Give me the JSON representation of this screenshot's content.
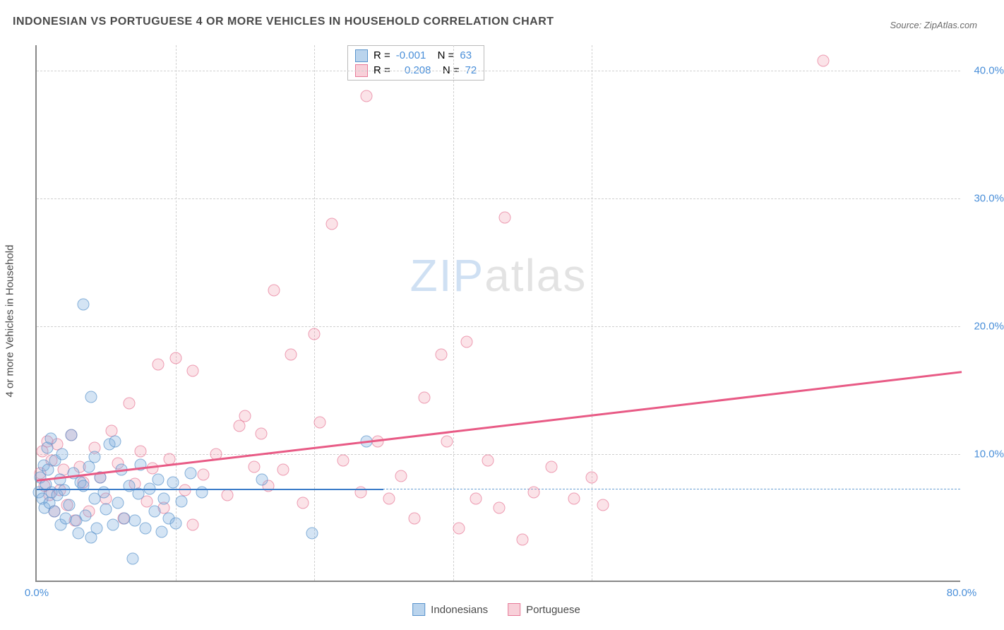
{
  "title": "INDONESIAN VS PORTUGUESE 4 OR MORE VEHICLES IN HOUSEHOLD CORRELATION CHART",
  "source": "Source: ZipAtlas.com",
  "y_axis_label": "4 or more Vehicles in Household",
  "watermark_part1": "ZIP",
  "watermark_part2": "atlas",
  "chart": {
    "type": "scatter",
    "xlim": [
      0,
      80
    ],
    "ylim": [
      0,
      42
    ],
    "x_tick_labels": [
      {
        "value": 0,
        "label": "0.0%"
      },
      {
        "value": 80,
        "label": "80.0%"
      }
    ],
    "y_tick_labels": [
      {
        "value": 10,
        "label": "10.0%"
      },
      {
        "value": 20,
        "label": "20.0%"
      },
      {
        "value": 30,
        "label": "30.0%"
      },
      {
        "value": 40,
        "label": "40.0%"
      }
    ],
    "v_gridlines_x": [
      12,
      24,
      36,
      48
    ],
    "h_gridlines_y": [
      10,
      20,
      30,
      40
    ],
    "reference_dashed_y": 7.3,
    "background_color": "#ffffff",
    "grid_color": "#d0d0d0",
    "marker_radius": 8.5,
    "series": {
      "indonesians": {
        "label": "Indonesians",
        "color_fill": "rgba(129,176,222,0.45)",
        "color_stroke": "#5a94cc",
        "R": "-0.001",
        "N": "63",
        "trendline": {
          "x1": 0,
          "y1": 7.3,
          "x2": 30,
          "y2": 7.3,
          "color": "#3a7cc9"
        },
        "points": [
          [
            0.2,
            7.0
          ],
          [
            0.3,
            8.2
          ],
          [
            0.5,
            6.5
          ],
          [
            0.6,
            9.1
          ],
          [
            0.7,
            5.8
          ],
          [
            0.8,
            7.6
          ],
          [
            0.9,
            10.5
          ],
          [
            1.0,
            8.8
          ],
          [
            1.1,
            6.2
          ],
          [
            1.2,
            11.2
          ],
          [
            1.3,
            7.0
          ],
          [
            1.5,
            5.5
          ],
          [
            1.6,
            9.5
          ],
          [
            1.8,
            6.8
          ],
          [
            2.0,
            8.0
          ],
          [
            2.1,
            4.5
          ],
          [
            2.2,
            10.0
          ],
          [
            2.4,
            7.2
          ],
          [
            2.5,
            5.0
          ],
          [
            2.8,
            6.0
          ],
          [
            3.0,
            11.5
          ],
          [
            3.2,
            8.5
          ],
          [
            3.4,
            4.8
          ],
          [
            3.6,
            3.8
          ],
          [
            3.8,
            7.8
          ],
          [
            4.0,
            21.7
          ],
          [
            4.2,
            5.2
          ],
          [
            4.5,
            9.0
          ],
          [
            4.7,
            14.5
          ],
          [
            4.7,
            3.5
          ],
          [
            5.0,
            6.5
          ],
          [
            5.2,
            4.2
          ],
          [
            5.5,
            8.2
          ],
          [
            5.8,
            7.0
          ],
          [
            6.0,
            5.7
          ],
          [
            6.3,
            10.8
          ],
          [
            6.6,
            4.5
          ],
          [
            7.0,
            6.2
          ],
          [
            7.3,
            8.8
          ],
          [
            7.6,
            5.0
          ],
          [
            8.0,
            7.5
          ],
          [
            8.3,
            1.8
          ],
          [
            8.5,
            4.8
          ],
          [
            8.8,
            6.9
          ],
          [
            9.0,
            9.2
          ],
          [
            9.4,
            4.2
          ],
          [
            9.8,
            7.3
          ],
          [
            10.2,
            5.5
          ],
          [
            10.5,
            8.0
          ],
          [
            10.8,
            3.9
          ],
          [
            11.0,
            6.5
          ],
          [
            11.4,
            5.0
          ],
          [
            11.8,
            7.8
          ],
          [
            12.0,
            4.6
          ],
          [
            12.5,
            6.3
          ],
          [
            13.3,
            8.5
          ],
          [
            14.3,
            7.0
          ],
          [
            19.5,
            8.0
          ],
          [
            23.8,
            3.8
          ],
          [
            28.5,
            11.0
          ],
          [
            5.0,
            9.8
          ],
          [
            6.8,
            11.0
          ],
          [
            4.0,
            7.5
          ]
        ]
      },
      "portuguese": {
        "label": "Portuguese",
        "color_fill": "rgba(240,150,170,0.35)",
        "color_stroke": "#e77a98",
        "R": "0.208",
        "N": "72",
        "trendline": {
          "x1": 0,
          "y1": 8.0,
          "x2": 80,
          "y2": 16.5,
          "color": "#e85a85"
        },
        "points": [
          [
            0.3,
            8.5
          ],
          [
            0.5,
            10.2
          ],
          [
            0.7,
            7.5
          ],
          [
            0.9,
            11.0
          ],
          [
            1.1,
            6.8
          ],
          [
            1.3,
            9.5
          ],
          [
            1.5,
            5.5
          ],
          [
            1.8,
            10.8
          ],
          [
            2.0,
            7.2
          ],
          [
            2.3,
            8.8
          ],
          [
            2.6,
            6.0
          ],
          [
            3.0,
            11.5
          ],
          [
            3.3,
            4.8
          ],
          [
            3.7,
            9.0
          ],
          [
            4.0,
            7.8
          ],
          [
            4.5,
            5.5
          ],
          [
            5.0,
            10.5
          ],
          [
            5.5,
            8.2
          ],
          [
            6.0,
            6.5
          ],
          [
            6.5,
            11.8
          ],
          [
            7.0,
            9.3
          ],
          [
            7.5,
            5.0
          ],
          [
            8.0,
            14.0
          ],
          [
            8.5,
            7.7
          ],
          [
            9.0,
            10.2
          ],
          [
            9.5,
            6.3
          ],
          [
            10.0,
            8.9
          ],
          [
            10.5,
            17.0
          ],
          [
            11.0,
            5.8
          ],
          [
            11.5,
            9.6
          ],
          [
            12.0,
            17.5
          ],
          [
            12.8,
            7.2
          ],
          [
            13.5,
            16.5
          ],
          [
            13.5,
            4.5
          ],
          [
            14.4,
            8.4
          ],
          [
            15.5,
            10.0
          ],
          [
            16.5,
            6.8
          ],
          [
            17.5,
            12.2
          ],
          [
            18.0,
            13.0
          ],
          [
            18.8,
            9.0
          ],
          [
            19.4,
            11.6
          ],
          [
            20.0,
            7.5
          ],
          [
            20.5,
            22.8
          ],
          [
            21.3,
            8.8
          ],
          [
            22.0,
            17.8
          ],
          [
            23.0,
            6.2
          ],
          [
            24.0,
            19.4
          ],
          [
            24.5,
            12.5
          ],
          [
            25.5,
            28.0
          ],
          [
            26.5,
            9.5
          ],
          [
            28.0,
            7.0
          ],
          [
            28.5,
            38.0
          ],
          [
            29.5,
            11.0
          ],
          [
            30.5,
            6.5
          ],
          [
            31.5,
            8.3
          ],
          [
            32.7,
            5.0
          ],
          [
            33.5,
            14.4
          ],
          [
            35.0,
            17.8
          ],
          [
            35.5,
            11.0
          ],
          [
            36.5,
            4.2
          ],
          [
            37.2,
            18.8
          ],
          [
            38.0,
            6.5
          ],
          [
            39.0,
            9.5
          ],
          [
            40.0,
            5.8
          ],
          [
            40.5,
            28.5
          ],
          [
            42.0,
            3.3
          ],
          [
            43.0,
            7.0
          ],
          [
            44.5,
            9.0
          ],
          [
            46.5,
            6.5
          ],
          [
            48.0,
            8.2
          ],
          [
            49.0,
            6.0
          ],
          [
            68.0,
            40.8
          ]
        ]
      }
    }
  },
  "legend_bottom": [
    {
      "swatch": "blue",
      "label_key": "chart.series.indonesians.label"
    },
    {
      "swatch": "pink",
      "label_key": "chart.series.portuguese.label"
    }
  ]
}
